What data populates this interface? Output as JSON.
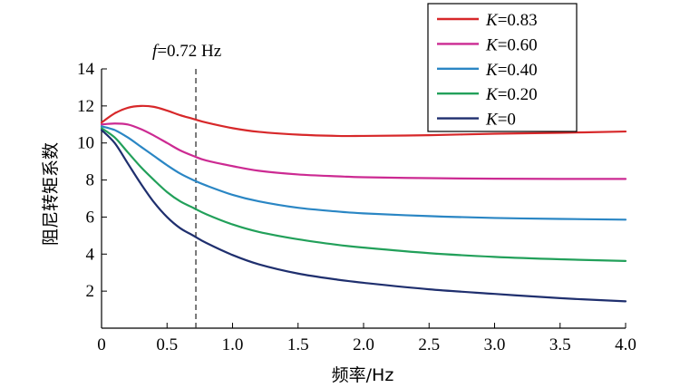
{
  "chart_data": {
    "type": "line",
    "xlabel": "频率/Hz",
    "ylabel": "阻尼转矩系数",
    "xlim": [
      0,
      4.0
    ],
    "ylim": [
      0,
      14
    ],
    "x_ticks": [
      "0",
      "0.5",
      "1.0",
      "1.5",
      "2.0",
      "2.5",
      "3.0",
      "3.5",
      "4.0"
    ],
    "y_ticks": [
      "2",
      "4",
      "6",
      "8",
      "10",
      "12",
      "14"
    ],
    "annotation": {
      "prefix": "f",
      "text": "=0.72 Hz",
      "x": 0.72
    },
    "series": [
      {
        "name_prefix": "K",
        "name": "=0.83",
        "color": "#d7282a",
        "x": [
          0,
          0.1,
          0.2,
          0.3,
          0.4,
          0.5,
          0.6,
          0.7,
          0.8,
          1.0,
          1.2,
          1.5,
          1.8,
          2.0,
          2.5,
          3.0,
          3.5,
          4.0
        ],
        "y": [
          11.1,
          11.6,
          11.9,
          12.0,
          11.95,
          11.75,
          11.5,
          11.3,
          11.1,
          10.8,
          10.6,
          10.45,
          10.38,
          10.38,
          10.42,
          10.5,
          10.55,
          10.62
        ]
      },
      {
        "name_prefix": "K",
        "name": "=0.60",
        "color": "#cc2a92",
        "x": [
          0,
          0.1,
          0.2,
          0.3,
          0.4,
          0.5,
          0.6,
          0.7,
          0.8,
          1.0,
          1.2,
          1.5,
          1.8,
          2.0,
          2.5,
          3.0,
          3.5,
          4.0
        ],
        "y": [
          11.0,
          11.05,
          11.0,
          10.75,
          10.4,
          10.0,
          9.6,
          9.3,
          9.05,
          8.75,
          8.5,
          8.3,
          8.2,
          8.15,
          8.1,
          8.07,
          8.06,
          8.06
        ]
      },
      {
        "name_prefix": "K",
        "name": "=0.40",
        "color": "#2a86c4",
        "x": [
          0,
          0.1,
          0.2,
          0.3,
          0.4,
          0.5,
          0.6,
          0.7,
          0.8,
          1.0,
          1.2,
          1.5,
          1.8,
          2.0,
          2.5,
          3.0,
          3.5,
          4.0
        ],
        "y": [
          10.9,
          10.7,
          10.3,
          9.8,
          9.3,
          8.8,
          8.35,
          8.0,
          7.7,
          7.2,
          6.85,
          6.5,
          6.3,
          6.2,
          6.05,
          5.95,
          5.9,
          5.86
        ]
      },
      {
        "name_prefix": "K",
        "name": "=0.20",
        "color": "#22a05a",
        "x": [
          0,
          0.1,
          0.2,
          0.3,
          0.4,
          0.5,
          0.6,
          0.7,
          0.8,
          1.0,
          1.2,
          1.5,
          1.8,
          2.0,
          2.5,
          3.0,
          3.5,
          4.0
        ],
        "y": [
          10.8,
          10.3,
          9.5,
          8.7,
          8.0,
          7.35,
          6.85,
          6.5,
          6.15,
          5.6,
          5.2,
          4.8,
          4.5,
          4.35,
          4.05,
          3.85,
          3.72,
          3.63
        ]
      },
      {
        "name_prefix": "K",
        "name": "=0",
        "color": "#1f2f6e",
        "x": [
          0,
          0.1,
          0.2,
          0.3,
          0.4,
          0.5,
          0.6,
          0.7,
          0.8,
          1.0,
          1.2,
          1.5,
          1.8,
          2.0,
          2.5,
          3.0,
          3.5,
          4.0
        ],
        "y": [
          10.7,
          10.0,
          8.9,
          7.8,
          6.8,
          6.0,
          5.4,
          5.0,
          4.6,
          3.95,
          3.45,
          2.95,
          2.62,
          2.45,
          2.1,
          1.85,
          1.62,
          1.45
        ]
      }
    ]
  }
}
